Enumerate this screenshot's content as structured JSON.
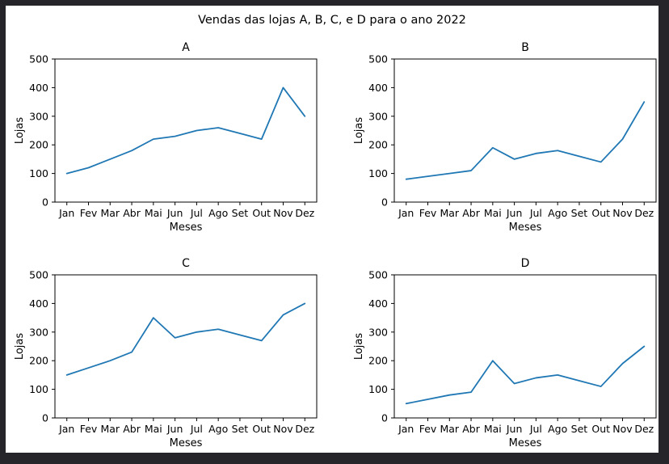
{
  "figure": {
    "title": "Vendas das lojas A, B, C, e D para o ano 2022",
    "background_color": "#ffffff",
    "frame_color": "#26262a",
    "line_color": "#1f77b4",
    "text_color": "#000000"
  },
  "chart_data": [
    {
      "id": "a",
      "type": "line",
      "title": "A",
      "xlabel": "Meses",
      "ylabel": "Lojas",
      "ylim": [
        0,
        500
      ],
      "yticks": [
        0,
        100,
        200,
        300,
        400,
        500
      ],
      "categories": [
        "Jan",
        "Fev",
        "Mar",
        "Abr",
        "Mai",
        "Jun",
        "Jul",
        "Ago",
        "Set",
        "Out",
        "Nov",
        "Dez"
      ],
      "values": [
        100,
        120,
        150,
        180,
        220,
        230,
        250,
        260,
        240,
        220,
        400,
        300
      ],
      "grid": false,
      "legend": false
    },
    {
      "id": "b",
      "type": "line",
      "title": "B",
      "xlabel": "Meses",
      "ylabel": "Lojas",
      "ylim": [
        0,
        500
      ],
      "yticks": [
        0,
        100,
        200,
        300,
        400,
        500
      ],
      "categories": [
        "Jan",
        "Fev",
        "Mar",
        "Abr",
        "Mai",
        "Jun",
        "Jul",
        "Ago",
        "Set",
        "Out",
        "Nov",
        "Dez"
      ],
      "values": [
        80,
        90,
        100,
        110,
        190,
        150,
        170,
        180,
        160,
        140,
        220,
        350
      ],
      "grid": false,
      "legend": false
    },
    {
      "id": "c",
      "type": "line",
      "title": "C",
      "xlabel": "Meses",
      "ylabel": "Lojas",
      "ylim": [
        0,
        500
      ],
      "yticks": [
        0,
        100,
        200,
        300,
        400,
        500
      ],
      "categories": [
        "Jan",
        "Fev",
        "Mar",
        "Abr",
        "Mai",
        "Jun",
        "Jul",
        "Ago",
        "Set",
        "Out",
        "Nov",
        "Dez"
      ],
      "values": [
        150,
        175,
        200,
        230,
        350,
        280,
        300,
        310,
        290,
        270,
        360,
        400
      ],
      "grid": false,
      "legend": false
    },
    {
      "id": "d",
      "type": "line",
      "title": "D",
      "xlabel": "Meses",
      "ylabel": "Lojas",
      "ylim": [
        0,
        500
      ],
      "yticks": [
        0,
        100,
        200,
        300,
        400,
        500
      ],
      "categories": [
        "Jan",
        "Fev",
        "Mar",
        "Abr",
        "Mai",
        "Jun",
        "Jul",
        "Ago",
        "Set",
        "Out",
        "Nov",
        "Dez"
      ],
      "values": [
        50,
        65,
        80,
        90,
        200,
        120,
        140,
        150,
        130,
        110,
        190,
        250
      ],
      "grid": false,
      "legend": false
    }
  ]
}
